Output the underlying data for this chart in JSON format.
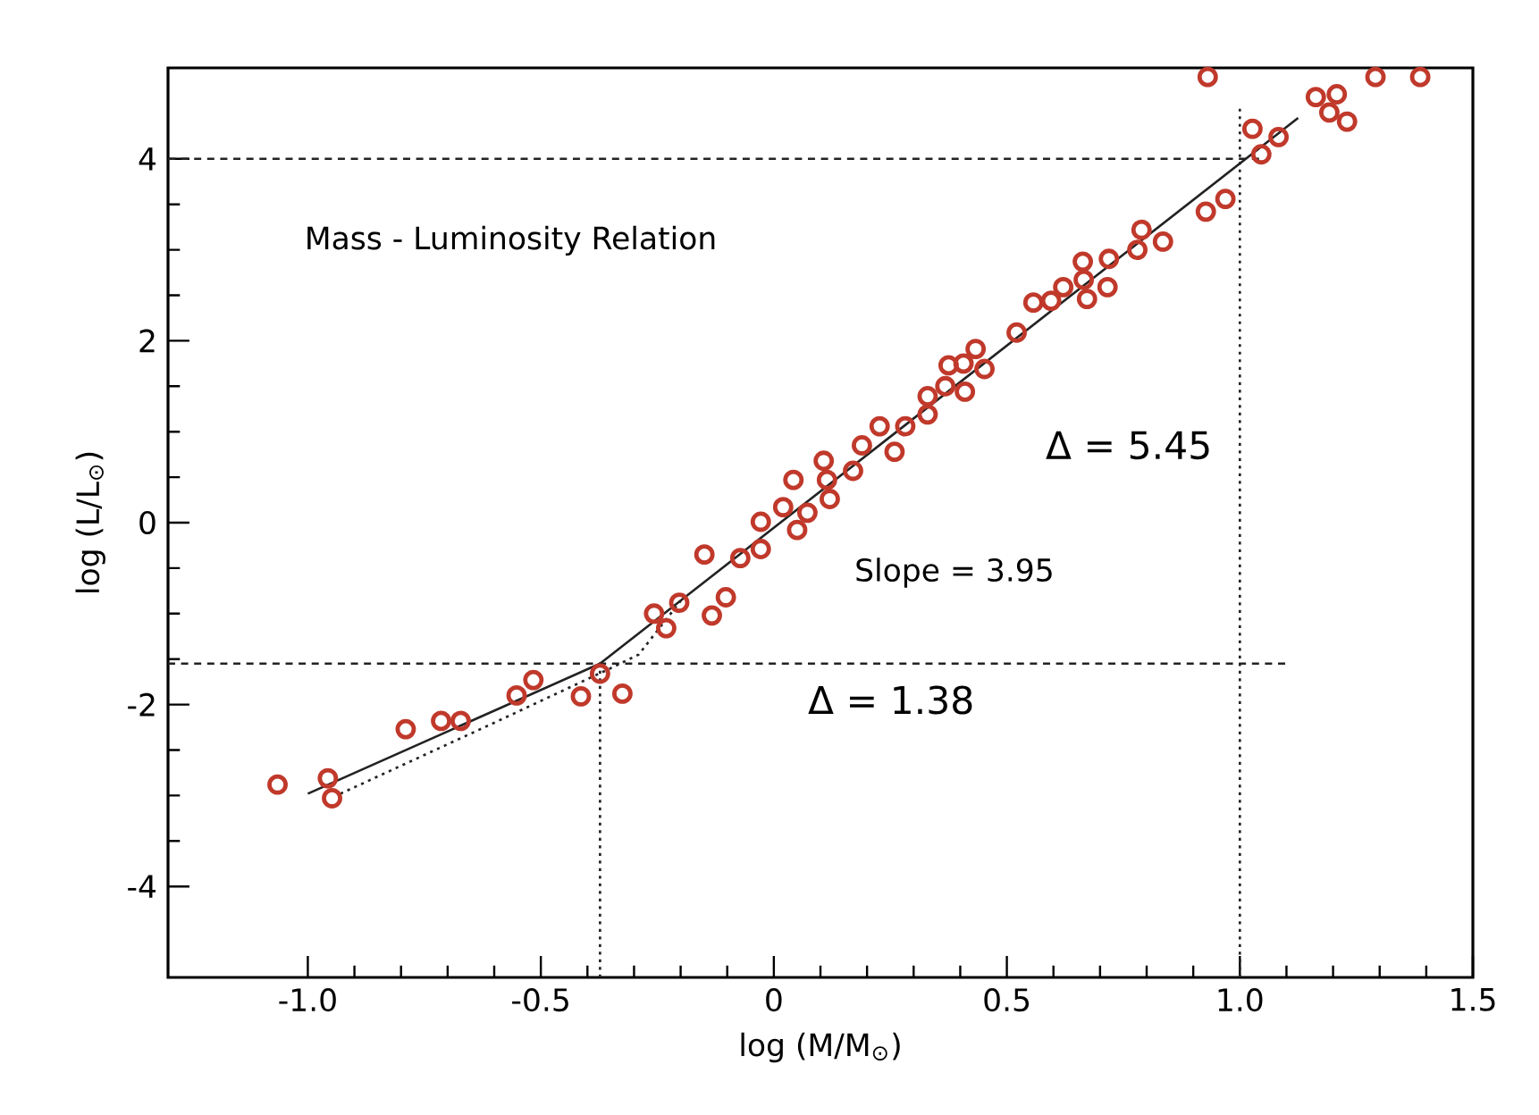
{
  "chart_data": {
    "type": "scatter",
    "xlabel": "log (M/M$_{⊙}$)",
    "ylabel": "log (L/L$_{⊙}$)",
    "xlim": [
      -1.3,
      1.5
    ],
    "ylim": [
      -5,
      5
    ],
    "xticks": [
      {
        "value": -1,
        "label": "-1.0"
      },
      {
        "value": -0.5,
        "label": "-0.5"
      },
      0,
      {
        "value": 0.5,
        "label": "0.5"
      },
      {
        "value": 1,
        "label": "1.0"
      },
      {
        "value": 1.5,
        "label": "1.5"
      }
    ],
    "yticks": [
      -4,
      -2,
      0,
      2,
      4
    ],
    "grid": false,
    "annotations": [
      "Mass - Luminosity Relation",
      "Δ = 5.45",
      "Slope = 3.95",
      "Δ = 1.38"
    ],
    "series": [
      {
        "type": "line",
        "color": "#222222",
        "line_style": "dashed",
        "x": [
          -1.3,
          1.05
        ],
        "values": [
          4.0,
          4.0
        ]
      },
      {
        "type": "line",
        "color": "#222222",
        "line_style": "dashed",
        "x": [
          -1.3,
          1.1
        ],
        "values": [
          -1.55,
          -1.55
        ]
      },
      {
        "type": "line",
        "color": "#222222",
        "line_style": "dotted",
        "x": [
          -0.373,
          -0.373
        ],
        "values": [
          -5,
          -1.55
        ]
      },
      {
        "type": "line",
        "color": "#222222",
        "line_style": "dotted",
        "x": [
          1.0,
          1.0
        ],
        "values": [
          -5,
          4.6
        ]
      },
      {
        "type": "line",
        "color": "#222222",
        "line_style": "dotted",
        "x": [
          -0.93,
          -0.6,
          -0.35,
          -0.29,
          -0.2
        ],
        "values": [
          -2.98,
          -2.2,
          -1.6,
          -1.45,
          -0.86
        ]
      },
      {
        "type": "line",
        "color": "#222222",
        "line_style": "solid",
        "x": [
          -1.0,
          -0.373,
          1.125
        ],
        "values": [
          -2.98,
          -1.55,
          4.45
        ]
      },
      {
        "color": "#c0392b",
        "marker": "circle",
        "x": [
          -1.065,
          -0.957,
          -0.948,
          -0.79,
          -0.714,
          -0.672,
          -0.552,
          -0.516,
          -0.414,
          -0.373,
          -0.325,
          -0.257,
          -0.231,
          -0.203,
          -0.149,
          -0.133,
          -0.103,
          -0.072,
          -0.028,
          -0.028,
          0.02,
          0.042,
          0.05,
          0.072,
          0.107,
          0.114,
          0.12,
          0.17,
          0.189,
          0.227,
          0.259,
          0.282,
          0.33,
          0.33,
          0.368,
          0.375,
          0.41,
          0.407,
          0.433,
          0.452,
          0.521,
          0.557,
          0.595,
          0.621,
          0.663,
          0.665,
          0.672,
          0.719,
          0.716,
          0.78,
          0.789,
          0.835,
          0.927,
          0.969,
          0.931,
          1.027,
          1.083,
          1.046,
          1.163,
          1.208,
          1.192,
          1.23,
          1.291,
          1.387
        ],
        "values": [
          -2.88,
          -2.81,
          -3.03,
          -2.27,
          -2.18,
          -2.18,
          -1.9,
          -1.73,
          -1.91,
          -1.66,
          -1.88,
          -1.0,
          -1.16,
          -0.88,
          -0.35,
          -1.02,
          -0.82,
          -0.39,
          -0.29,
          0.01,
          0.17,
          0.47,
          -0.08,
          0.11,
          0.68,
          0.47,
          0.26,
          0.57,
          0.85,
          1.06,
          0.78,
          1.06,
          1.19,
          1.39,
          1.5,
          1.73,
          1.44,
          1.75,
          1.91,
          1.69,
          2.09,
          2.42,
          2.44,
          2.59,
          2.87,
          2.67,
          2.46,
          2.9,
          2.59,
          3.0,
          3.22,
          3.09,
          3.42,
          3.56,
          4.9,
          4.33,
          4.24,
          4.05,
          4.68,
          4.71,
          4.51,
          4.41,
          4.9,
          4.9
        ]
      }
    ]
  }
}
